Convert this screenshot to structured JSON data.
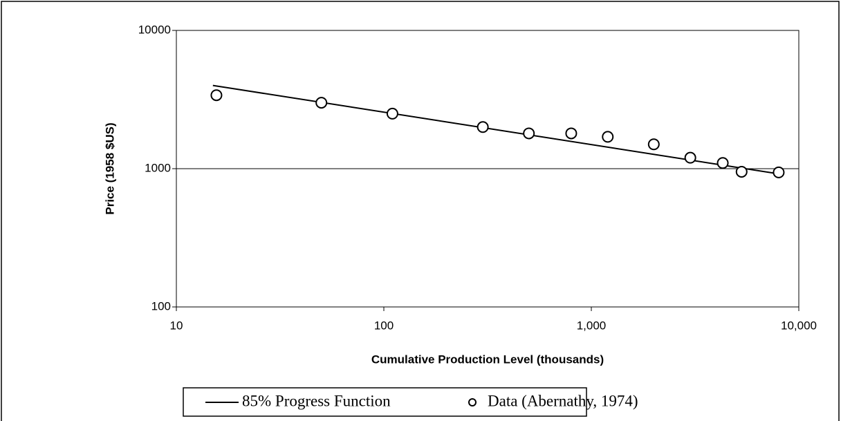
{
  "chart_data": {
    "type": "scatter",
    "x_label": "Cumulative Production Level (thousands)",
    "y_label": "Price (1958 $US)",
    "log_x": true,
    "log_y": true,
    "grid": true,
    "legend": "bottom",
    "xlim": [
      10,
      10000
    ],
    "ylim": [
      100,
      10000
    ],
    "xticks": [
      10,
      100,
      {
        "value": 1000,
        "label": "1,000"
      },
      {
        "value": 10000,
        "label": "10,000"
      }
    ],
    "yticks": [
      100,
      1000,
      10000
    ],
    "series": [
      {
        "name": "85% Progress Function",
        "type": "line",
        "color": "#000000",
        "x": [
          15,
          8000
        ],
        "values": [
          4000,
          917
        ]
      },
      {
        "name": "Data (Abernathy, 1974)",
        "type": "scatter",
        "color": "#000000",
        "x": [
          15.6,
          50,
          110,
          300,
          500,
          800,
          1200,
          2000,
          3000,
          4300,
          5300,
          8000
        ],
        "values": [
          3400,
          3000,
          2500,
          2000,
          1800,
          1800,
          1700,
          1500,
          1200,
          1100,
          950,
          940
        ]
      }
    ]
  }
}
